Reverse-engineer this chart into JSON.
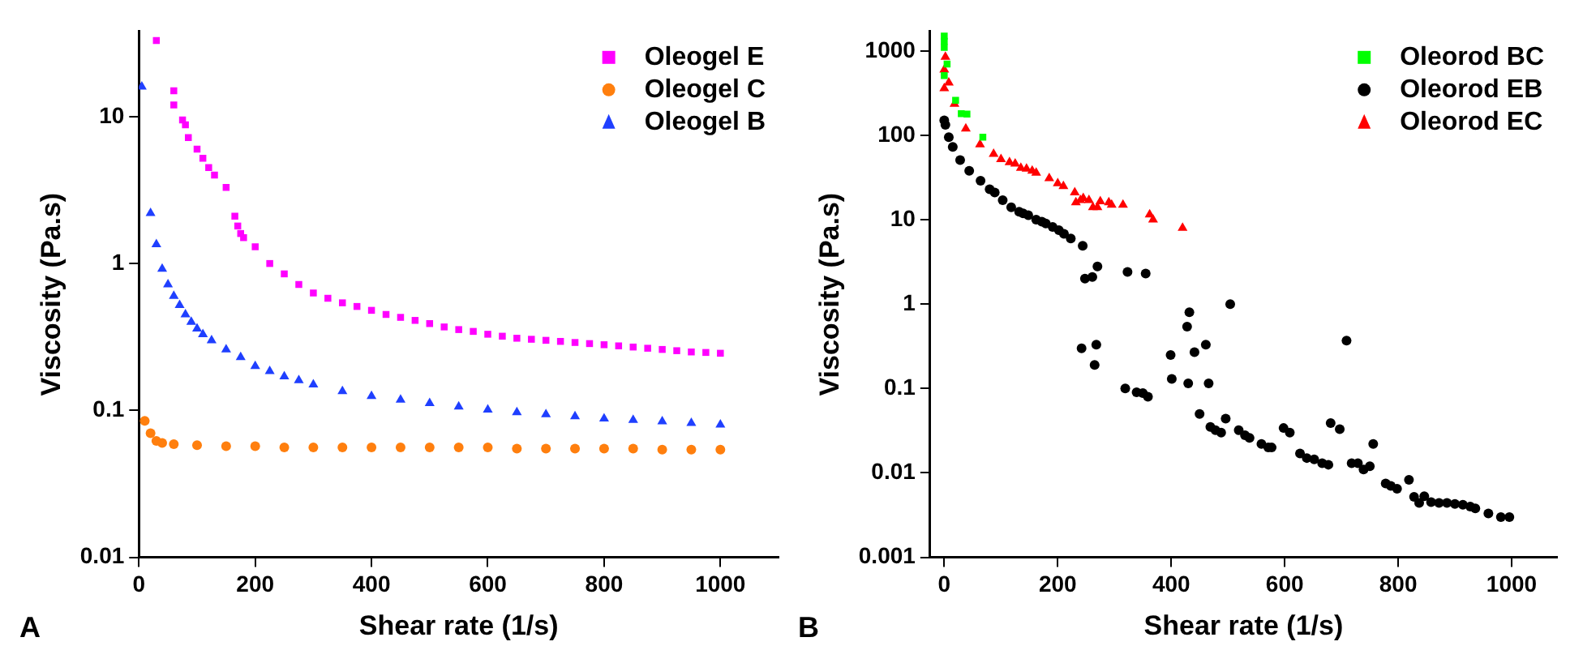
{
  "chart_data": [
    {
      "type": "scatter",
      "xlabel": "Shear rate (1/s)",
      "ylabel": "Viscosity (Pa.s)",
      "annotations": [
        "A"
      ],
      "log": "y",
      "grid": false,
      "legend": "top right",
      "xlim": [
        0,
        1100
      ],
      "xticks": [
        0,
        200,
        400,
        600,
        800,
        1000
      ],
      "ylim": [
        0.01,
        38
      ],
      "yticks": [
        0.01,
        0.1,
        1,
        10
      ],
      "series": [
        {
          "name": "Oleogel E",
          "color": "#ff00ff",
          "marker": "square",
          "x": [
            30,
            60,
            60,
            75,
            80,
            85,
            100,
            110,
            120,
            130,
            150,
            165,
            170,
            175,
            180,
            200,
            225,
            250,
            275,
            300,
            325,
            350,
            375,
            400,
            425,
            450,
            475,
            500,
            525,
            550,
            575,
            600,
            625,
            650,
            675,
            700,
            725,
            750,
            775,
            800,
            825,
            850,
            875,
            900,
            925,
            950,
            975,
            1000
          ],
          "values": [
            33,
            15,
            12,
            9.5,
            8.8,
            7.2,
            6,
            5.2,
            4.5,
            4,
            3.3,
            2.1,
            1.8,
            1.6,
            1.5,
            1.3,
            1,
            0.85,
            0.72,
            0.63,
            0.58,
            0.54,
            0.51,
            0.48,
            0.45,
            0.43,
            0.41,
            0.39,
            0.37,
            0.355,
            0.345,
            0.33,
            0.32,
            0.31,
            0.305,
            0.3,
            0.295,
            0.29,
            0.285,
            0.28,
            0.275,
            0.27,
            0.265,
            0.26,
            0.255,
            0.25,
            0.248,
            0.245
          ]
        },
        {
          "name": "Oleogel C",
          "color": "#ff7f0e",
          "marker": "circle",
          "x": [
            10,
            20,
            30,
            40,
            60,
            100,
            150,
            200,
            250,
            300,
            350,
            400,
            450,
            500,
            550,
            600,
            650,
            700,
            750,
            800,
            850,
            900,
            950,
            1000
          ],
          "values": [
            0.085,
            0.07,
            0.062,
            0.06,
            0.059,
            0.058,
            0.057,
            0.057,
            0.056,
            0.056,
            0.056,
            0.056,
            0.056,
            0.056,
            0.056,
            0.056,
            0.055,
            0.055,
            0.055,
            0.055,
            0.055,
            0.054,
            0.054,
            0.054
          ]
        },
        {
          "name": "Oleogel B",
          "color": "#1f3fff",
          "marker": "triangle",
          "x": [
            5,
            20,
            30,
            40,
            50,
            60,
            70,
            80,
            90,
            100,
            110,
            125,
            150,
            175,
            200,
            225,
            250,
            275,
            300,
            350,
            400,
            450,
            500,
            550,
            600,
            650,
            700,
            750,
            800,
            850,
            900,
            950,
            1000
          ],
          "values": [
            16,
            2.2,
            1.35,
            0.92,
            0.72,
            0.6,
            0.52,
            0.45,
            0.4,
            0.36,
            0.33,
            0.3,
            0.26,
            0.23,
            0.2,
            0.185,
            0.17,
            0.16,
            0.15,
            0.135,
            0.125,
            0.118,
            0.112,
            0.106,
            0.101,
            0.097,
            0.094,
            0.091,
            0.088,
            0.086,
            0.084,
            0.082,
            0.08
          ]
        }
      ]
    },
    {
      "type": "scatter",
      "xlabel": "Shear rate (1/s)",
      "ylabel": "Viscosity (Pa.s)",
      "annotations": [
        "B"
      ],
      "log": "y",
      "grid": false,
      "legend": "top right",
      "xlim": [
        -25,
        1080
      ],
      "xticks": [
        0,
        200,
        400,
        600,
        800,
        1000
      ],
      "ylim": [
        0.001,
        1700
      ],
      "yticks": [
        0.001,
        0.01,
        0.1,
        1,
        10,
        100,
        1000
      ],
      "series": [
        {
          "name": "Oleorod BC",
          "color": "#00ff00",
          "marker": "square",
          "x": [
            0,
            0,
            0,
            0,
            5,
            20,
            30,
            40,
            68
          ],
          "values": [
            1500,
            1300,
            1100,
            510,
            700,
            260,
            180,
            178,
            95
          ]
        },
        {
          "name": "Oleorod EB",
          "color": "#000000",
          "marker": "circle",
          "x": [
            0,
            2,
            8,
            15,
            28,
            44,
            64,
            80,
            89,
            103,
            118,
            132,
            139,
            148,
            162,
            172,
            179,
            191,
            202,
            211,
            223,
            244,
            248,
            261,
            270,
            323,
            355,
            242,
            265,
            268,
            319,
            339,
            350,
            359,
            399,
            401,
            428,
            432,
            430,
            441,
            461,
            466,
            450,
            469,
            478,
            488,
            496,
            504,
            519,
            530,
            538,
            559,
            571,
            577,
            598,
            609,
            627,
            639,
            652,
            666,
            677,
            681,
            697,
            709,
            718,
            729,
            739,
            750,
            756,
            778,
            787,
            798,
            819,
            828,
            837,
            846,
            858,
            872,
            886,
            900,
            914,
            927,
            936,
            959,
            981,
            996
          ],
          "values": [
            150,
            133,
            95,
            73,
            51,
            38,
            29,
            23,
            21,
            17,
            14,
            12.4,
            11.9,
            11.3,
            10,
            9.5,
            9,
            8.2,
            7.5,
            6.8,
            6,
            4.9,
            2,
            2.1,
            2.8,
            2.4,
            2.3,
            0.3,
            0.19,
            0.33,
            0.1,
            0.09,
            0.088,
            0.08,
            0.25,
            0.13,
            0.54,
            0.8,
            0.115,
            0.27,
            0.33,
            0.115,
            0.05,
            0.035,
            0.032,
            0.03,
            0.044,
            1,
            0.032,
            0.028,
            0.026,
            0.022,
            0.02,
            0.02,
            0.034,
            0.03,
            0.017,
            0.015,
            0.0145,
            0.013,
            0.0125,
            0.039,
            0.033,
            0.37,
            0.013,
            0.013,
            0.011,
            0.012,
            0.022,
            0.0075,
            0.007,
            0.0065,
            0.0083,
            0.0052,
            0.0044,
            0.0053,
            0.0045,
            0.0044,
            0.0044,
            0.0043,
            0.0042,
            0.004,
            0.0038,
            0.0033,
            0.003,
            0.003
          ]
        },
        {
          "name": "Oleorod EC",
          "color": "#ff0000",
          "marker": "triangle",
          "x": [
            0,
            0,
            2,
            3,
            8,
            18,
            38,
            63,
            87,
            100,
            115,
            125,
            135,
            145,
            155,
            162,
            185,
            200,
            210,
            230,
            232,
            240,
            245,
            255,
            262,
            270,
            275,
            290,
            295,
            315,
            362,
            368,
            420
          ],
          "values": [
            360,
            600,
            850,
            null,
            420,
            235,
            120,
            78,
            60,
            52,
            48,
            46,
            41,
            40,
            38,
            36,
            31,
            27,
            25,
            21,
            16,
            17,
            18,
            17,
            14,
            14,
            16.5,
            16,
            15,
            15,
            11.5,
            10,
            8
          ]
        }
      ]
    }
  ]
}
